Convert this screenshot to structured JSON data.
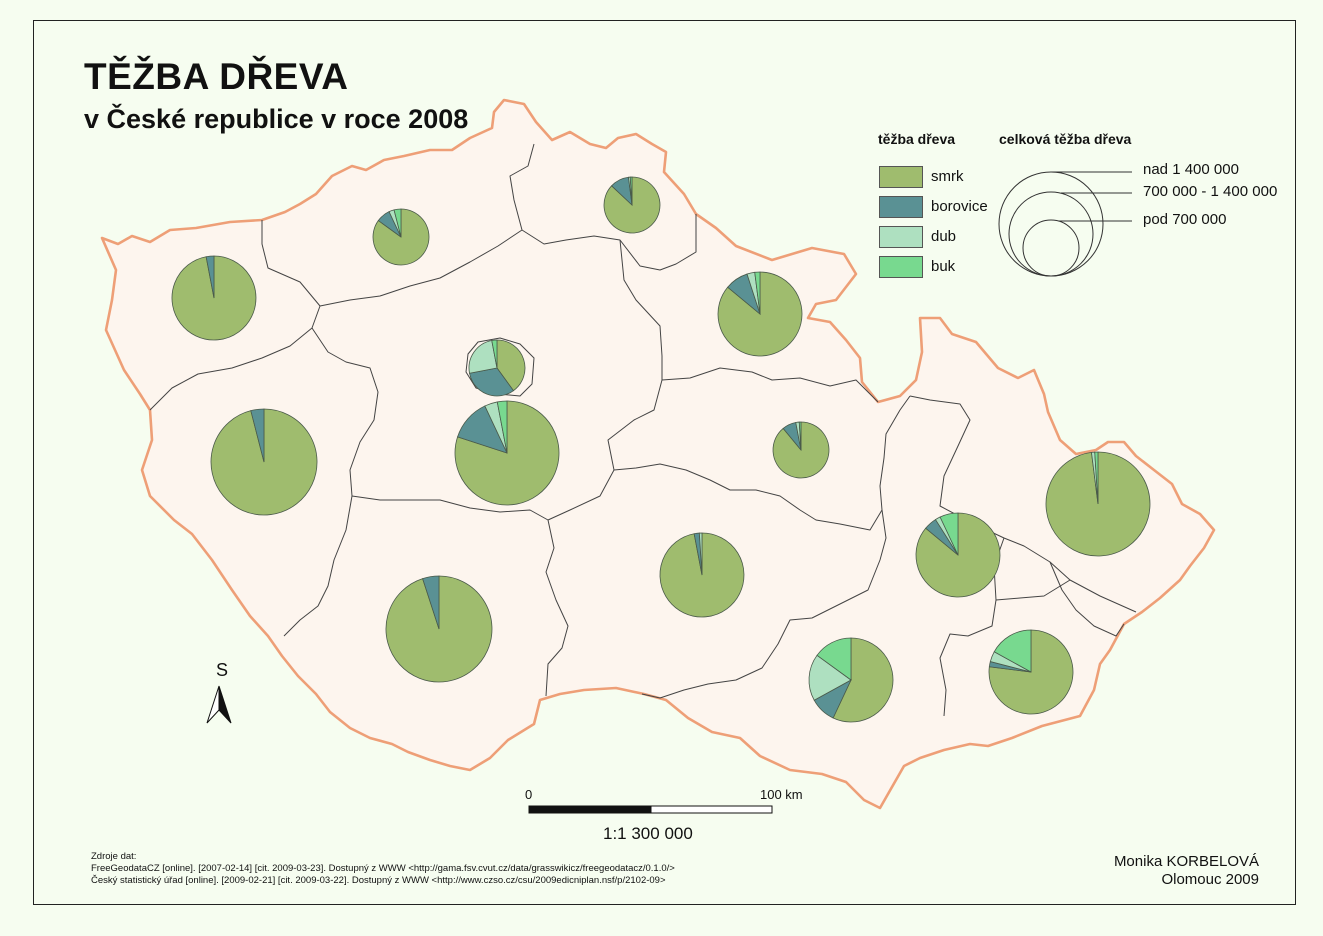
{
  "title": "TĚŽBA DŘEVA",
  "subtitle": "v České republice v roce 2008",
  "legend": {
    "species_title": "těžba dřeva",
    "species": [
      {
        "label": "smrk",
        "color": "#9fbc6e"
      },
      {
        "label": "borovice",
        "color": "#5a9194"
      },
      {
        "label": "dub",
        "color": "#aee0c0"
      },
      {
        "label": "buk",
        "color": "#78d98f"
      }
    ],
    "size_title": "celková těžba dřeva",
    "sizes": [
      {
        "label": "nad 1 400 000"
      },
      {
        "label": "700 000 - 1 400 000"
      },
      {
        "label": "pod 700 000"
      }
    ]
  },
  "north": "S",
  "scale": {
    "start": "0",
    "end": "100 km",
    "ratio": "1:1 300 000"
  },
  "sources": {
    "heading": "Zdroje dat:",
    "lines": [
      "FreeGeodataCZ [online]. [2007-02-14] [cit. 2009-03-23]. Dostupný z WWW <http://gama.fsv.cvut.cz/data/grasswikicz/freegeodatacz/0.1.0/>",
      "Český statistický úřad [online]. [2009-02-21] [cit. 2009-03-22]. Dostupný z WWW <http://www.czso.cz/csu/2009edicniplan.nsf/p/2102-09>"
    ]
  },
  "author": {
    "name": "Monika KORBELOVÁ",
    "place_year": "Olomouc 2009"
  },
  "colors": {
    "background": "#f6fdf0",
    "land": "#fdf5ee",
    "border": "#ee9f77",
    "region_line": "#444444"
  },
  "regions": [
    {
      "id": "karlovarsky",
      "shares": [
        0.97,
        0.03,
        0,
        0
      ]
    },
    {
      "id": "ustecky",
      "shares": [
        0.85,
        0.08,
        0.03,
        0.04
      ]
    },
    {
      "id": "liberecky",
      "shares": [
        0.87,
        0.11,
        0.01,
        0.01
      ]
    },
    {
      "id": "kralovehradecky",
      "shares": [
        0.86,
        0.09,
        0.03,
        0.02
      ]
    },
    {
      "id": "praha",
      "shares": [
        0.4,
        0.32,
        0.25,
        0.03
      ]
    },
    {
      "id": "stredocesky",
      "shares": [
        0.8,
        0.13,
        0.04,
        0.03
      ]
    },
    {
      "id": "plzensky",
      "shares": [
        0.96,
        0.04,
        0,
        0
      ]
    },
    {
      "id": "pardubicky",
      "shares": [
        0.89,
        0.08,
        0.02,
        0.01
      ]
    },
    {
      "id": "moravskoslezsky",
      "shares": [
        0.98,
        0,
        0.01,
        0.01
      ]
    },
    {
      "id": "olomoucky",
      "shares": [
        0.86,
        0.05,
        0.02,
        0.07
      ]
    },
    {
      "id": "vysocina",
      "shares": [
        0.97,
        0.02,
        0.01,
        0
      ]
    },
    {
      "id": "jihocesky",
      "shares": [
        0.95,
        0.05,
        0,
        0
      ]
    },
    {
      "id": "jihomoravsky",
      "shares": [
        0.57,
        0.1,
        0.18,
        0.15
      ]
    },
    {
      "id": "zlinsky",
      "shares": [
        0.77,
        0.02,
        0.04,
        0.17
      ]
    }
  ]
}
